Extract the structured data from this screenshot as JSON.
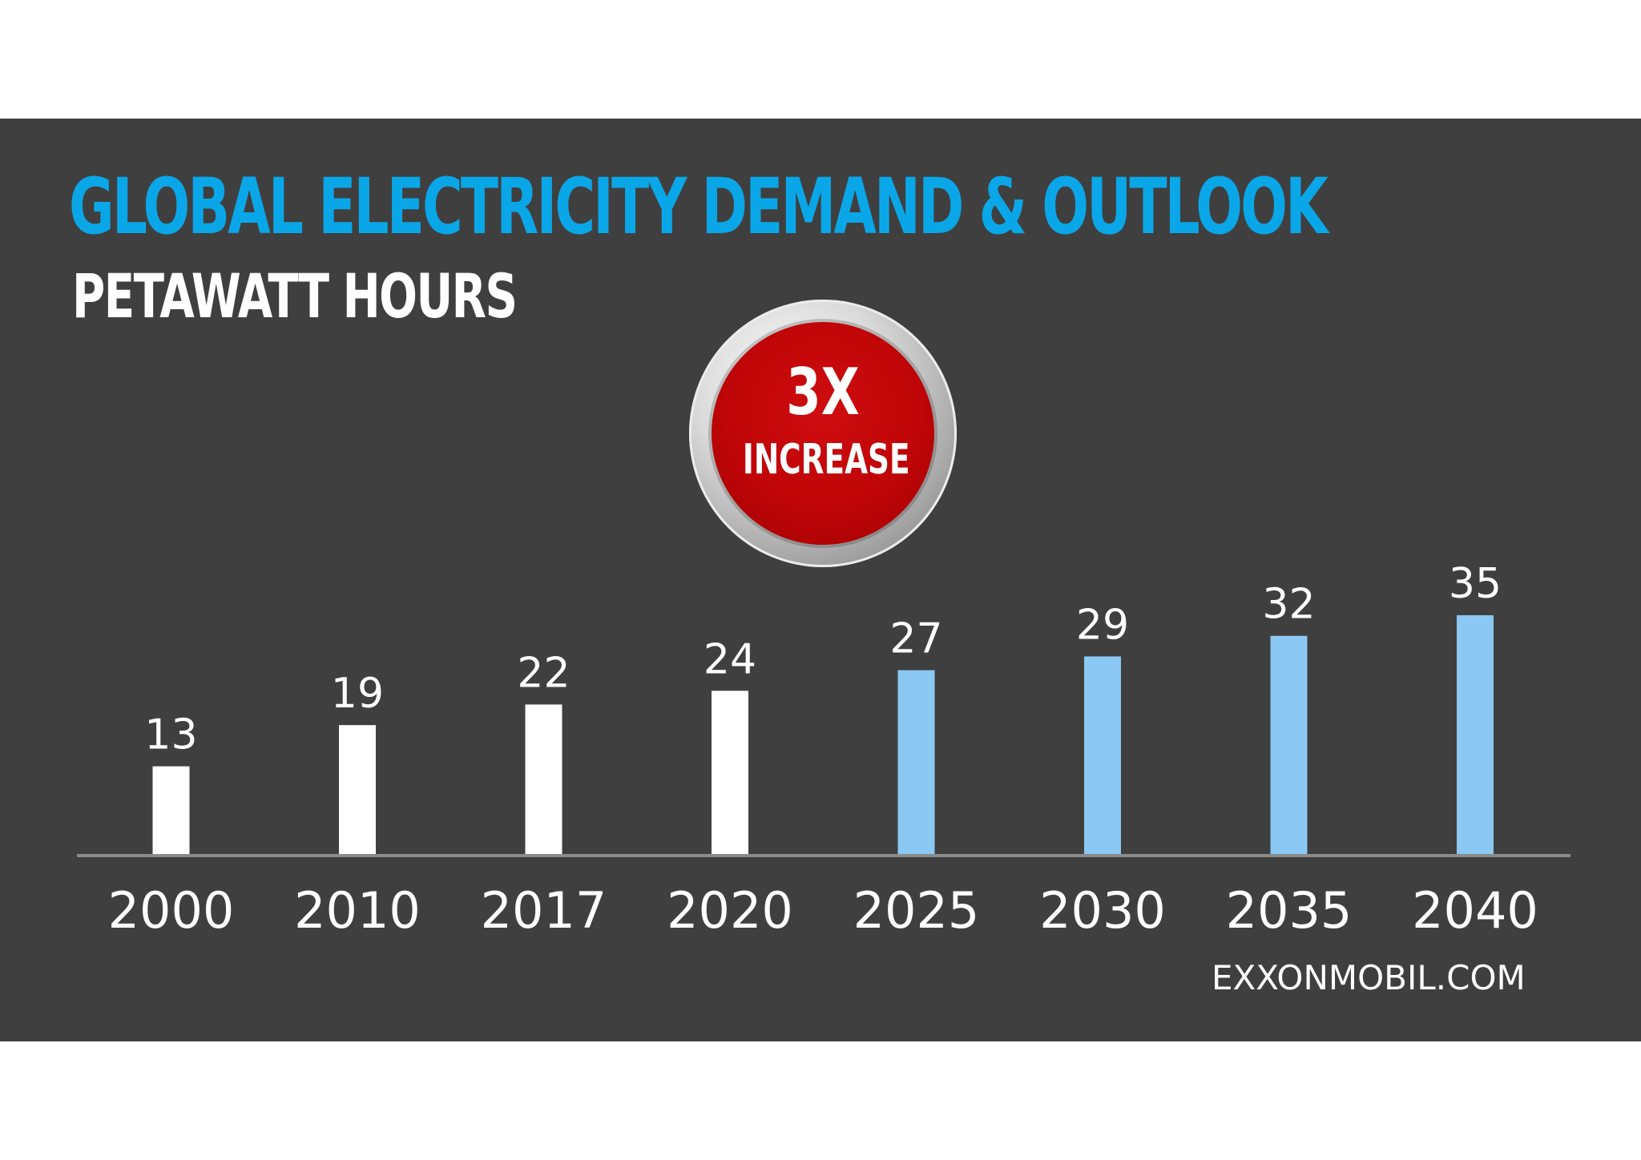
{
  "title": "GLOBAL ELECTRICITY DEMAND & OUTLOOK",
  "subtitle": "PETAWATT HOURS",
  "badge": {
    "main": "3X",
    "sub": "INCREASE"
  },
  "source": "EXXONMOBIL.COM",
  "colors": {
    "background": "#3f3f40",
    "title": "#0aa7e8",
    "historical": "#ffffff",
    "projection": "#8bc8f3",
    "axis": "#8b8b8b",
    "badge": "#c00607"
  },
  "chart_data": {
    "type": "bar",
    "title": "GLOBAL ELECTRICITY DEMAND & OUTLOOK",
    "subtitle": "PETAWATT HOURS",
    "categories": [
      "2000",
      "2010",
      "2017",
      "2020",
      "2025",
      "2030",
      "2035",
      "2040"
    ],
    "values": [
      13,
      19,
      22,
      24,
      27,
      29,
      32,
      35
    ],
    "ylim": [
      0,
      35
    ],
    "grid": false,
    "legend": "none",
    "bar_colors": [
      "#ffffff",
      "#ffffff",
      "#ffffff",
      "#ffffff",
      "#8bc8f3",
      "#8bc8f3",
      "#8bc8f3",
      "#8bc8f3"
    ],
    "data_labels": [
      "13",
      "19",
      "22",
      "24",
      "27",
      "29",
      "32",
      "35"
    ]
  }
}
